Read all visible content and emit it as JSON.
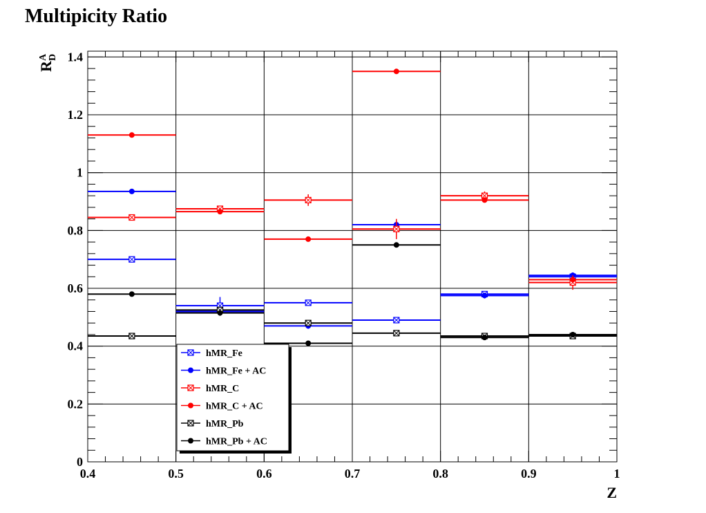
{
  "chart_data": {
    "type": "scatter",
    "title": "Multipicity Ratio",
    "xlabel": "Z",
    "ylabel": "R",
    "ylabel_sup": "A",
    "ylabel_sub": "D",
    "xlim": [
      0.4,
      1.0
    ],
    "ylim": [
      0,
      1.42
    ],
    "grid": true,
    "legend_position": "bottom-left",
    "x_ticks": [
      "0.4",
      "0.5",
      "0.6",
      "0.7",
      "0.8",
      "0.9",
      "1"
    ],
    "y_ticks": [
      "0",
      "0.2",
      "0.4",
      "0.6",
      "0.8",
      "1",
      "1.2",
      "1.4"
    ],
    "bins": [
      [
        0.4,
        0.5
      ],
      [
        0.5,
        0.6
      ],
      [
        0.6,
        0.7
      ],
      [
        0.7,
        0.8
      ],
      [
        0.8,
        0.9
      ],
      [
        0.9,
        1.0
      ]
    ],
    "x": [
      0.45,
      0.55,
      0.65,
      0.75,
      0.85,
      0.95
    ],
    "series": [
      {
        "name": "hMR_Fe",
        "color": "#0000ff",
        "marker": "crossed-square",
        "values": [
          0.7,
          0.54,
          0.55,
          0.49,
          0.58,
          0.64
        ],
        "errors": [
          0.01,
          0.03,
          0.01,
          0.01,
          0.01,
          0.01
        ]
      },
      {
        "name": "hMR_Fe + AC",
        "color": "#0000ff",
        "marker": "circle",
        "values": [
          0.935,
          0.52,
          0.47,
          0.82,
          0.575,
          0.645
        ],
        "errors": [
          0.005,
          0.01,
          0.01,
          0.01,
          0.01,
          0.01
        ]
      },
      {
        "name": "hMR_C",
        "color": "#ff0000",
        "marker": "crossed-square",
        "values": [
          0.845,
          0.875,
          0.905,
          0.805,
          0.92,
          0.62
        ],
        "errors": [
          0.01,
          0.01,
          0.02,
          0.035,
          0.015,
          0.025
        ]
      },
      {
        "name": "hMR_C + AC",
        "color": "#ff0000",
        "marker": "circle",
        "values": [
          1.13,
          0.865,
          0.77,
          1.35,
          0.905,
          0.63
        ],
        "errors": [
          0.005,
          0.005,
          0.005,
          0.005,
          0.005,
          0.01
        ]
      },
      {
        "name": "hMR_Pb",
        "color": "#000000",
        "marker": "crossed-square",
        "values": [
          0.435,
          0.525,
          0.48,
          0.445,
          0.435,
          0.435
        ],
        "errors": [
          0.005,
          0.01,
          0.01,
          0.005,
          0.005,
          0.005
        ]
      },
      {
        "name": "hMR_Pb + AC",
        "color": "#000000",
        "marker": "circle",
        "values": [
          0.58,
          0.515,
          0.41,
          0.75,
          0.43,
          0.44
        ],
        "errors": [
          0.005,
          0.01,
          0.005,
          0.005,
          0.005,
          0.005
        ]
      }
    ]
  }
}
